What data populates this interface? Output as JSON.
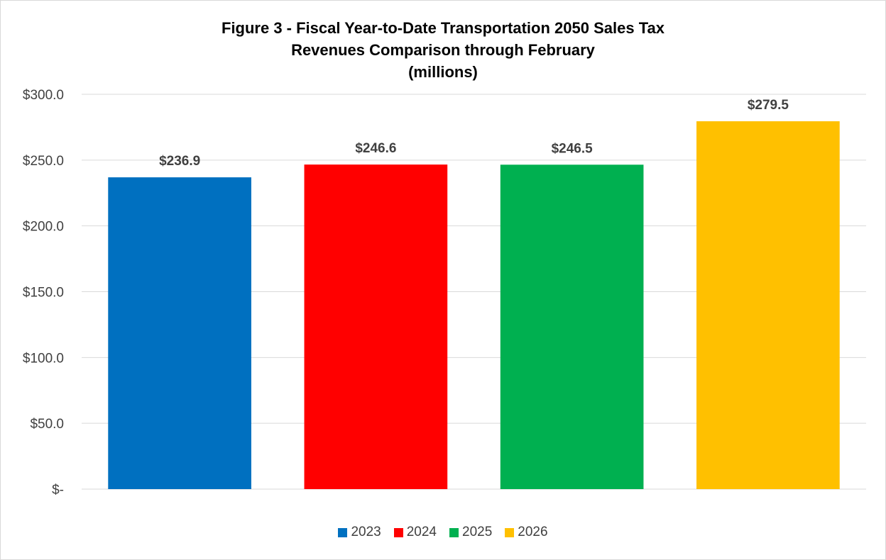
{
  "chart_data": {
    "type": "bar",
    "title_lines": [
      "Figure 3 - Fiscal Year-to-Date Transportation 2050 Sales Tax",
      "Revenues Comparison through February",
      "(millions)"
    ],
    "categories": [
      "2023",
      "2024",
      "2025",
      "2026"
    ],
    "values": [
      236.9,
      246.6,
      246.5,
      279.5
    ],
    "value_labels": [
      "$236.9",
      "$246.6",
      "$246.5",
      "$279.5"
    ],
    "colors": [
      "#0070C0",
      "#FF0000",
      "#00B050",
      "#FFC000"
    ],
    "xlabel": "",
    "ylabel": "",
    "ylim": [
      0,
      300
    ],
    "yticks": [
      0,
      50,
      100,
      150,
      200,
      250,
      300
    ],
    "ytick_labels": [
      "$-",
      "$50.0",
      "$100.0",
      "$150.0",
      "$200.0",
      "$250.0",
      "$300.0"
    ],
    "grid": true,
    "legend_position": "bottom",
    "legend": [
      "2023",
      "2024",
      "2025",
      "2026"
    ]
  }
}
